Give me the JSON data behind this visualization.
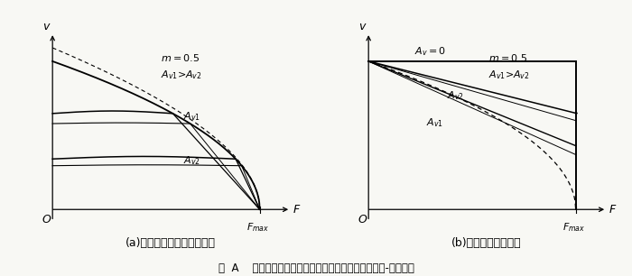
{
  "fig_width": 7.0,
  "fig_height": 3.06,
  "dpi": 100,
  "bg": "#f8f8f4",
  "title_text": "图  A    调速阀的进口、出口和旁路节流调速回路的速度-负载曲线",
  "sub_a": "(a)进口和出口节流调速回路",
  "sub_b": "(b)旁路节流调速回路",
  "a_m_label": "$m=0.5$",
  "a_av_label": "$A_{v1}$>$A_{v2}$",
  "a_av1_label": "$A_{v1}$",
  "a_av2_label": "$A_{v2}$",
  "b_av0_label": "$A_v=0$",
  "b_av2_label": "$A_{v2}$",
  "b_av1_label": "$A_{v1}$",
  "b_m_label": "$m=0.5$",
  "b_av_label": "$A_{v1}$>$A_{v2}$"
}
